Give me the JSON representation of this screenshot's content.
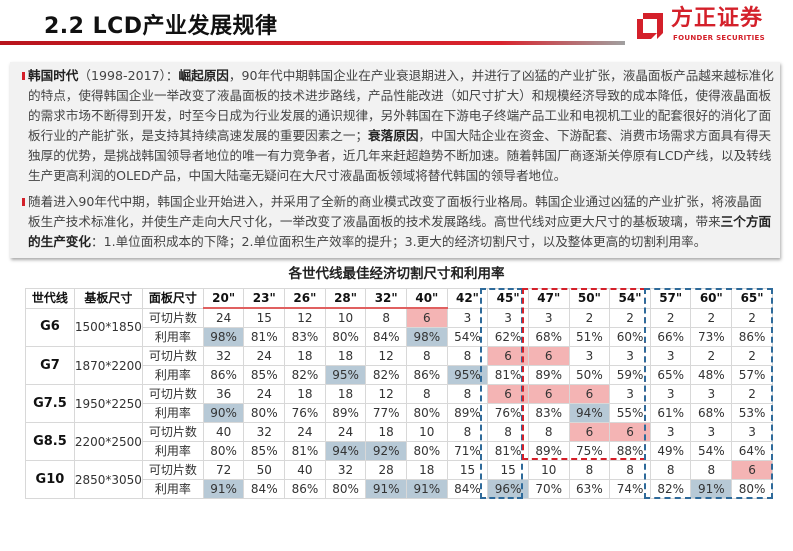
{
  "header": {
    "title": "2.2 LCD产业发展规律",
    "logo_cn": "方正证券",
    "logo_en": "FOUNDER SECURITIES",
    "accent": "#d4202a"
  },
  "intro": {
    "p1": {
      "b1": "韩国时代",
      "t1": "（1998-2017）：",
      "b2": "崛起原因",
      "t2": "，90年代中期韩国企业在产业衰退期进入，并进行了凶猛的产业扩张，液晶面板产品越来越标准化的特点，使得韩国企业一举改变了液晶面板的技术进步路线，产品性能改进（如尺寸扩大）和规模经济导致的成本降低，使得液晶面板的需求市场不断得到开发，时至今日成为行业发展的通识规律，另外韩国在下游电子终端产品工业和电视机工业的配套很好的消化了面板行业的产能扩张，是支持其持续高速发展的重要因素之一；",
      "b3": "衰落原因",
      "t3": "，中国大陆企业在资金、下游配套、消费市场需求方面具有得天独厚的优势，是挑战韩国领导者地位的唯一有力竞争者，近几年来赶超趋势不断加速。随着韩国厂商逐渐关停原有LCD产线，以及转线生产更高利润的OLED产品，中国大陆毫无疑问在大尺寸液晶面板领域将替代韩国的领导者地位。"
    },
    "p2": {
      "t1": "随着进入90年代中期，韩国企业开始进入，并采用了全新的商业模式改变了面板行业格局。韩国企业通过凶猛的产业扩张，将液晶面板生产技术标准化，并使生产走向大尺寸化，一举改变了液晶面板的技术发展路线。高世代线对应更大尺寸的基板玻璃，带来",
      "b1": "三个方面的生产变化",
      "t2": "：1.单位面积成本的下降；2.单位面积生产效率的提升；3.更大的经济切割尺寸，以及整体更高的切割利用率。"
    }
  },
  "table": {
    "title": "各世代线最佳经济切割尺寸和利用率",
    "headers": [
      "世代线",
      "基板尺寸",
      "面板尺寸"
    ],
    "sizes": [
      "20\"",
      "23\"",
      "26\"",
      "28\"",
      "32\"",
      "40\"",
      "42\"",
      "45\"",
      "47\"",
      "50\"",
      "54\"",
      "57\"",
      "60\"",
      "65\""
    ],
    "count_label": "可切片数",
    "util_label": "利用率",
    "highlight_colors": {
      "blue": "#b7c9d6",
      "pink": "#f4b4b4"
    },
    "rows": [
      {
        "gen": "G6",
        "substrate": "1500*1850",
        "counts": [
          "24",
          "15",
          "12",
          "10",
          "8",
          "6",
          "3",
          "3",
          "3",
          "2",
          "2",
          "2",
          "2",
          "2"
        ],
        "utils": [
          "98%",
          "81%",
          "83%",
          "80%",
          "84%",
          "98%",
          "54%",
          "62%",
          "68%",
          "51%",
          "60%",
          "66%",
          "73%",
          "86%"
        ],
        "count_pink": [
          5
        ],
        "util_blue": [
          0,
          5
        ]
      },
      {
        "gen": "G7",
        "substrate": "1870*2200",
        "counts": [
          "32",
          "24",
          "18",
          "18",
          "12",
          "8",
          "8",
          "6",
          "6",
          "3",
          "3",
          "3",
          "2",
          "2"
        ],
        "utils": [
          "86%",
          "85%",
          "82%",
          "95%",
          "82%",
          "86%",
          "95%",
          "81%",
          "89%",
          "50%",
          "59%",
          "65%",
          "48%",
          "57%"
        ],
        "count_pink": [
          7,
          8
        ],
        "util_blue": [
          3,
          6
        ]
      },
      {
        "gen": "G7.5",
        "substrate": "1950*2250",
        "counts": [
          "36",
          "24",
          "18",
          "18",
          "12",
          "8",
          "8",
          "6",
          "6",
          "6",
          "3",
          "3",
          "3",
          "2"
        ],
        "utils": [
          "90%",
          "80%",
          "76%",
          "89%",
          "77%",
          "80%",
          "89%",
          "76%",
          "83%",
          "94%",
          "55%",
          "61%",
          "68%",
          "53%"
        ],
        "count_pink": [
          7,
          8,
          9
        ],
        "util_blue": [
          0,
          9
        ]
      },
      {
        "gen": "G8.5",
        "substrate": "2200*2500",
        "counts": [
          "40",
          "32",
          "24",
          "24",
          "18",
          "10",
          "8",
          "8",
          "8",
          "6",
          "6",
          "3",
          "3",
          "3"
        ],
        "utils": [
          "80%",
          "85%",
          "81%",
          "94%",
          "92%",
          "80%",
          "71%",
          "81%",
          "89%",
          "75%",
          "88%",
          "49%",
          "54%",
          "64%"
        ],
        "count_pink": [
          9,
          10
        ],
        "util_blue": [
          3,
          4
        ]
      },
      {
        "gen": "G10",
        "substrate": "2850*3050",
        "counts": [
          "72",
          "50",
          "40",
          "32",
          "28",
          "18",
          "15",
          "15",
          "10",
          "8",
          "8",
          "8",
          "8",
          "6"
        ],
        "utils": [
          "91%",
          "84%",
          "86%",
          "80%",
          "91%",
          "91%",
          "84%",
          "96%",
          "70%",
          "63%",
          "74%",
          "82%",
          "91%",
          "80%"
        ],
        "count_pink": [
          13
        ],
        "util_blue": [
          0,
          4,
          5,
          7,
          12
        ]
      }
    ]
  }
}
